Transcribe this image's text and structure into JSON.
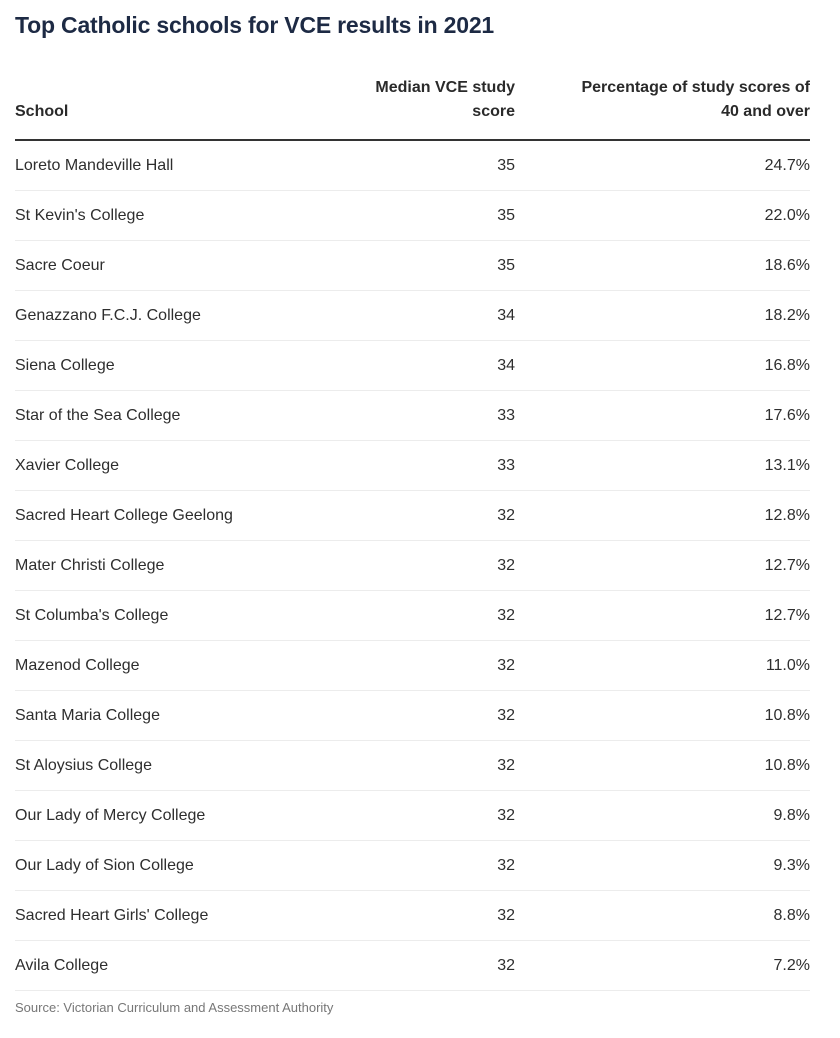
{
  "title": "Top Catholic schools for VCE results in 2021",
  "source": "Source: Victorian Curriculum and Assessment Authority",
  "chart_data": {
    "type": "table",
    "title": "Top Catholic schools for VCE results in 2021",
    "columns": [
      "School",
      "Median VCE study score",
      "Percentage of study scores of 40 and over"
    ],
    "rows": [
      {
        "school": "Loreto Mandeville Hall",
        "median": "35",
        "pct": "24.7%"
      },
      {
        "school": "St Kevin's College",
        "median": "35",
        "pct": "22.0%"
      },
      {
        "school": "Sacre Coeur",
        "median": "35",
        "pct": "18.6%"
      },
      {
        "school": "Genazzano F.C.J. College",
        "median": "34",
        "pct": "18.2%"
      },
      {
        "school": "Siena College",
        "median": "34",
        "pct": "16.8%"
      },
      {
        "school": "Star of the Sea College",
        "median": "33",
        "pct": "17.6%"
      },
      {
        "school": "Xavier College",
        "median": "33",
        "pct": "13.1%"
      },
      {
        "school": "Sacred Heart College Geelong",
        "median": "32",
        "pct": "12.8%"
      },
      {
        "school": "Mater Christi College",
        "median": "32",
        "pct": "12.7%"
      },
      {
        "school": "St Columba's College",
        "median": "32",
        "pct": "12.7%"
      },
      {
        "school": "Mazenod College",
        "median": "32",
        "pct": "11.0%"
      },
      {
        "school": "Santa Maria College",
        "median": "32",
        "pct": "10.8%"
      },
      {
        "school": "St Aloysius College",
        "median": "32",
        "pct": "10.8%"
      },
      {
        "school": "Our Lady of Mercy College",
        "median": "32",
        "pct": "9.8%"
      },
      {
        "school": "Our Lady of Sion College",
        "median": "32",
        "pct": "9.3%"
      },
      {
        "school": "Sacred Heart Girls' College",
        "median": "32",
        "pct": "8.8%"
      },
      {
        "school": "Avila College",
        "median": "32",
        "pct": "7.2%"
      }
    ]
  }
}
